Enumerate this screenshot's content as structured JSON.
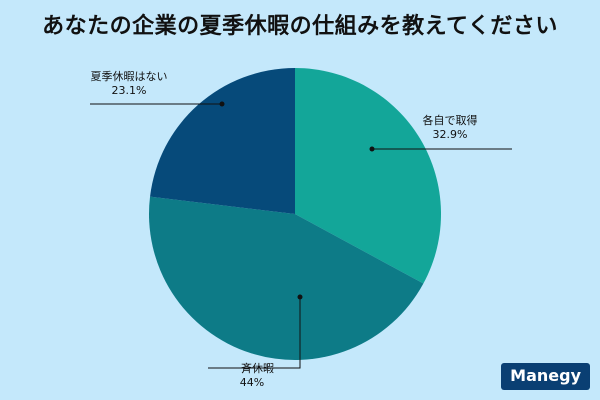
{
  "chart_data": {
    "type": "pie",
    "title": "あなたの企業の夏季休暇の仕組みを教えてください",
    "slices": [
      {
        "label": "各自で取得",
        "value": 32.9,
        "value_text": "32.9%",
        "color": "#13a699"
      },
      {
        "label": "一斉休暇",
        "value": 44,
        "value_text": "44%",
        "color": "#0d7b87"
      },
      {
        "label": "夏季休暇はない",
        "value": 23.1,
        "value_text": "23.1%",
        "color": "#064a7a"
      }
    ],
    "legend": "none"
  },
  "logo": {
    "text": "Manegy"
  }
}
